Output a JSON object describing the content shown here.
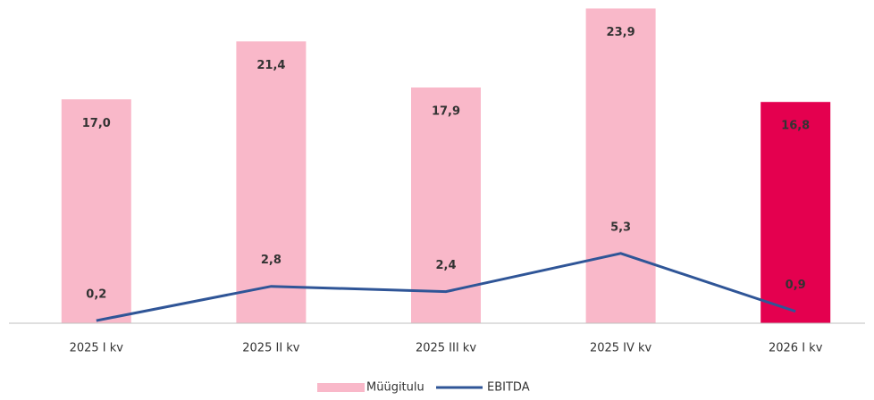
{
  "chart_data": {
    "type": "bar_line",
    "categories": [
      "2025 I kv",
      "2025 II kv",
      "2025 III kv",
      "2025 IV kv",
      "2026 I kv"
    ],
    "series": [
      {
        "name": "Müügitulu",
        "type": "bar",
        "color": "#f9b8c9",
        "colors": [
          "#f9b8c9",
          "#f9b8c9",
          "#f9b8c9",
          "#f9b8c9",
          "#e4004f"
        ],
        "values": [
          17.0,
          21.4,
          17.9,
          23.9,
          16.8
        ],
        "value_labels": [
          "17,0",
          "21,4",
          "17,9",
          "23,9",
          "16,8"
        ]
      },
      {
        "name": "EBITDA",
        "type": "line",
        "color": "#2f5597",
        "values": [
          0.2,
          2.8,
          2.4,
          5.3,
          0.9
        ],
        "value_labels": [
          "0,2",
          "2,8",
          "2,4",
          "5,3",
          "0,9"
        ]
      }
    ],
    "ylim": [
      0,
      24
    ],
    "legend": "bottom"
  }
}
